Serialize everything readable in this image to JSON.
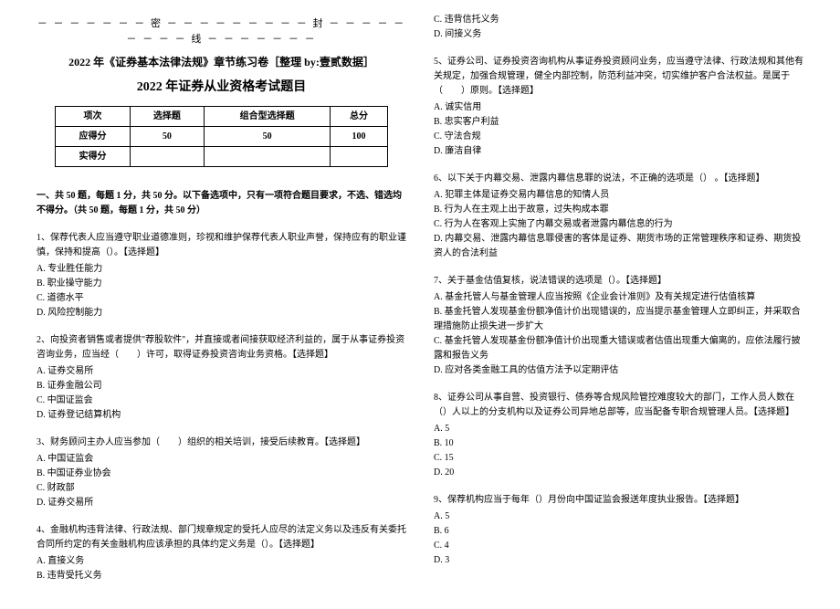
{
  "seal_line": "－ － － － － － － 密 － － － － － － － － － 封 － － － － － － － － － 线 － － － － － － －",
  "header_line1": "2022 年《证券基本法律法规》章节练习卷［整理 by:壹贰数据］",
  "header_line2": "2022 年证券从业资格考试题目",
  "score_table": {
    "headers": [
      "项次",
      "选择题",
      "组合型选择题",
      "总分"
    ],
    "row1": [
      "应得分",
      "50",
      "50",
      "100"
    ],
    "row2": [
      "实得分",
      "",
      "",
      ""
    ]
  },
  "section1_note": "一、共 50 题，每题 1 分，共 50 分。以下备选项中，只有一项符合题目要求，不选、错选均不得分。（共 50 题，每题 1 分，共 50 分）",
  "q1": {
    "stem": "1、保荐代表人应当遵守职业道德准则，珍视和维护保荐代表人职业声誉，保持应有的职业谨慎，保持和提高（）。【选择题】",
    "a": "A. 专业胜任能力",
    "b": "B. 职业操守能力",
    "c": "C. 道德水平",
    "d": "D. 风险控制能力"
  },
  "q2": {
    "stem": "2、向投资者销售或者提供\"荐股软件\"，并直接或者间接获取经济利益的，属于从事证券投资咨询业务，应当经（　　）许可，取得证券投资咨询业务资格。【选择题】",
    "a": "A. 证券交易所",
    "b": "B. 证券金融公司",
    "c": "C. 中国证监会",
    "d": "D. 证券登记结算机构"
  },
  "q3": {
    "stem": "3、财务顾问主办人应当参加（　　）组织的相关培训，接受后续教育。【选择题】",
    "a": "A. 中国证监会",
    "b": "B. 中国证券业协会",
    "c": "C. 财政部",
    "d": "D. 证券交易所"
  },
  "q4": {
    "stem": "4、金融机构违背法律、行政法规、部门规章规定的受托人应尽的法定义务以及违反有关委托合同所约定的有关金融机构应该承担的具体约定义务是（）。【选择题】",
    "a": "A. 直接义务",
    "b": "B. 违背受托义务",
    "c": "C. 违背信托义务",
    "d": "D. 间接义务"
  },
  "q5": {
    "stem": "5、证券公司、证券投资咨询机构从事证券投资顾问业务，应当遵守法律、行政法规和其他有关规定，加强合规管理，健全内部控制，防范利益冲突，切实维护客户合法权益。是属于（　　）原则。【选择题】",
    "a": "A. 诚实信用",
    "b": "B. 忠实客户利益",
    "c": "C. 守法合规",
    "d": "D. 廉洁自律"
  },
  "q6": {
    "stem": "6、以下关于内幕交易、泄露内幕信息罪的说法，不正确的选项是（） 。【选择题】",
    "a": "A. 犯罪主体是证券交易内幕信息的知情人员",
    "b": "B. 行为人在主观上出于故意，过失构成本罪",
    "c": "C. 行为人在客观上实施了内幕交易或者泄露内幕信息的行为",
    "d": "D. 内幕交易、泄露内幕信息罪侵害的客体是证券、期货市场的正常管理秩序和证券、期货投资人的合法利益"
  },
  "q7": {
    "stem": "7、关于基金估值复核，说法错误的选项是（）。【选择题】",
    "a": "A. 基金托管人与基金管理人应当按照《企业会计准则》及有关规定进行估值核算",
    "b": "B. 基金托管人发现基金份额净值计价出现错误的，应当提示基金管理人立即纠正，并采取合理措施防止损失进一步扩大",
    "c": "C. 基金托管人发现基金份额净值计价出现重大错误或者估值出现重大偏离的，应依法履行披露和报告义务",
    "d": "D. 应对各类金融工具的估值方法予以定期评估"
  },
  "q8": {
    "stem": "8、证券公司从事自营、投资银行、债券等合规风险管控难度较大的部门，工作人员人数在（）人以上的分支机构以及证券公司异地总部等，应当配备专职合规管理人员。【选择题】",
    "a": "A. 5",
    "b": "B. 10",
    "c": "C. 15",
    "d": "D. 20"
  },
  "q9": {
    "stem": "9、保荐机构应当于每年（）月份向中国证监会报送年度执业报告。【选择题】",
    "a": "A. 5",
    "b": "B. 6",
    "c": "C. 4",
    "d": "D. 3"
  }
}
